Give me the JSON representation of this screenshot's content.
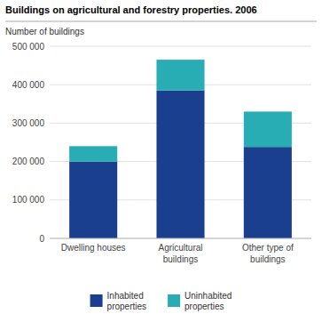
{
  "chart_data": {
    "type": "bar",
    "stacked": true,
    "title": "Buildings on agricultural and forestry properties. 2006",
    "ylabel": "Number of buildings",
    "categories": [
      "Dwelling houses",
      "Agricultural\nbuildings",
      "Other type of\nbuildings"
    ],
    "series": [
      {
        "name": "Inhabited\nproperties",
        "color": "#1a3f8f",
        "values": [
          200000,
          385000,
          238000
        ]
      },
      {
        "name": "Uninhabited\nproperties",
        "color": "#29adb5",
        "values": [
          40000,
          80000,
          92000
        ]
      }
    ],
    "ylim": [
      0,
      500000
    ],
    "yticks": [
      0,
      {
        "value": 100000,
        "label": "100 000"
      },
      {
        "value": 200000,
        "label": "200 000"
      },
      {
        "value": 300000,
        "label": "300 000"
      },
      {
        "value": 400000,
        "label": "400 000"
      },
      {
        "value": 500000,
        "label": "500 000"
      }
    ],
    "grid": true,
    "legend": "bottom"
  }
}
